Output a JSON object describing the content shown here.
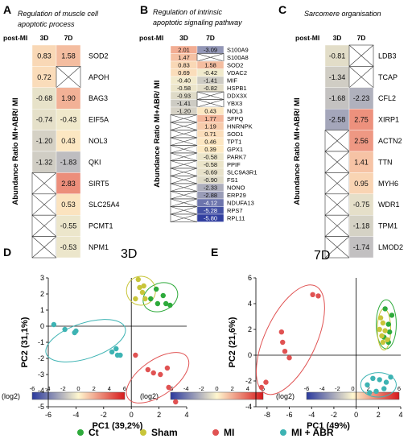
{
  "panels_top": [
    {
      "letter": "A",
      "title": "Regulation of muscle cell apoptotic process",
      "title_lines": [
        "Regulation of  muscle cell",
        "apoptotic process"
      ],
      "post_mi": "post-MI",
      "col_headers": [
        "3D",
        "7D"
      ],
      "ylabel": "Abundance Ratio MI+ABR/ MI",
      "genes": [
        "SOD2",
        "APOH",
        "BAG3",
        "EIF5A",
        "NOL3",
        "QKI",
        "SIRT5",
        "SLC25A4",
        "PCMT1",
        "NPM1"
      ],
      "values_3d": [
        0.83,
        0.72,
        -0.68,
        -0.74,
        -1.2,
        -1.32,
        null,
        null,
        null,
        null
      ],
      "values_7d": [
        1.58,
        null,
        1.9,
        -0.43,
        0.43,
        -1.83,
        2.83,
        0.53,
        -0.55,
        -0.53
      ],
      "values_3d_text": [
        "0.83",
        "0.72",
        "-0.68",
        "-0.74",
        "-1.20",
        "-1.32",
        "",
        "",
        "",
        ""
      ],
      "values_7d_text": [
        "1.58",
        "",
        "1.90",
        "-0.43",
        "0.43",
        "-1.83",
        "2.83",
        "0.53",
        "-0.55",
        "-0.53"
      ]
    },
    {
      "letter": "B",
      "title": "Regulation of intrinsic apoptotic signaling pathway",
      "title_lines": [
        "Regulation of intrinsic",
        "apoptotic signaling pathway"
      ],
      "post_mi": "post-MI",
      "col_headers": [
        "3D",
        "7D"
      ],
      "ylabel": "Abundance Ratio MI+ABR/ MI",
      "genes": [
        "S100A9",
        "S100A8",
        "SOD2",
        "VDAC2",
        "MIF",
        "HSPB1",
        "DDX3X",
        "YBX3",
        "NOL3",
        "SFPQ",
        "HNRNPK",
        "SOD1",
        "TPT1",
        "GPX1",
        "PARK7",
        "PPIF",
        "SLC9A3R1",
        "FS1",
        "NONO",
        "ERP29",
        "NDUFA13",
        "RPS7",
        "RPL11"
      ],
      "values_3d": [
        2.01,
        1.47,
        0.83,
        0.69,
        -0.4,
        -0.58,
        -0.93,
        -1.41,
        -1.2,
        null,
        null,
        null,
        null,
        null,
        null,
        null,
        null,
        null,
        null,
        null,
        null,
        null,
        null
      ],
      "values_7d": [
        -3.09,
        null,
        1.58,
        -0.42,
        -1.41,
        -0.82,
        null,
        null,
        0.43,
        1.77,
        1.19,
        0.71,
        0.46,
        0.39,
        -0.58,
        -0.58,
        -0.69,
        -0.9,
        -2.33,
        -2.88,
        -4.12,
        -5.28,
        -5.8
      ],
      "values_3d_text": [
        "2.01",
        "1.47",
        "0.83",
        "0.69",
        "-0.40",
        "-0.58",
        "-0.93",
        "-1.41",
        "-1.20",
        "",
        "",
        "",
        "",
        "",
        "",
        "",
        "",
        "",
        "",
        "",
        "",
        "",
        ""
      ],
      "values_7d_text": [
        "-3.09",
        "",
        "1.58",
        "-0.42",
        "-1.41",
        "-0.82",
        "",
        "",
        "0.43",
        "1.77",
        "1.19",
        "0.71",
        "0.46",
        "0.39",
        "-0.58",
        "-0.58",
        "-0.69",
        "-0.90",
        "-2.33",
        "-2.88",
        "-4.12",
        "-5.28",
        "-5.80"
      ]
    },
    {
      "letter": "C",
      "title": "Sarcomere organisation",
      "title_lines": [
        "Sarcomere organisation"
      ],
      "post_mi": "post-MI",
      "col_headers": [
        "3D",
        "7D"
      ],
      "ylabel": "Abundance Ratio MI+ABR/ MI",
      "genes": [
        "LDB3",
        "TCAP",
        "CFL2",
        "XIRP1",
        "ACTN2",
        "TTN",
        "MYH6",
        "WDR1",
        "TPM1",
        "LMOD2"
      ],
      "values_3d": [
        -0.81,
        -1.34,
        -1.68,
        -2.58,
        null,
        null,
        null,
        null,
        null,
        null
      ],
      "values_7d": [
        null,
        null,
        -2.23,
        2.75,
        2.56,
        1.41,
        0.95,
        -0.75,
        -1.18,
        -1.74
      ],
      "values_3d_text": [
        "-0.81",
        "-1.34",
        "-1.68",
        "-2.58",
        "",
        "",
        "",
        "",
        "",
        ""
      ],
      "values_7d_text": [
        "",
        "",
        "-2.23",
        "2.75",
        "2.56",
        "1.41",
        "0.95",
        "-0.75",
        "-1.18",
        "-1.74"
      ]
    }
  ],
  "colorbar": {
    "label": "(log2)",
    "ticks": [
      -6,
      -4,
      -2,
      0,
      2,
      4,
      6
    ],
    "tick_labels": [
      "-6",
      "-4",
      "-2",
      "0",
      "2",
      "4",
      "6"
    ],
    "range": [
      -6,
      6
    ],
    "color_low": "#2b3a9e",
    "color_mid": "#fff7cf",
    "color_high": "#d7191c"
  },
  "chart_data": [
    {
      "type": "scatter",
      "letter": "D",
      "title": "3D",
      "xlabel": "PC1 (39,2%)",
      "ylabel": "PC2 (31,1%)",
      "xlim": [
        -6,
        4
      ],
      "ylim": [
        -5,
        3
      ],
      "xticks": [
        -6,
        -4,
        -2,
        0,
        2,
        4
      ],
      "yticks": [
        -5,
        -4,
        -3,
        -2,
        -1,
        0,
        1,
        2,
        3
      ],
      "xtick_labels": [
        "-6",
        "-4",
        "-2",
        "0",
        "2",
        "4"
      ],
      "ytick_labels": [
        "-5",
        "-4",
        "-3",
        "-2",
        "-1",
        "0",
        "1",
        "2",
        "3"
      ],
      "series": [
        {
          "name": "Ct",
          "color": "#2eaa3b",
          "points": [
            [
              1.8,
              2.3
            ],
            [
              2.3,
              1.9
            ],
            [
              1.4,
              1.7
            ],
            [
              1.9,
              1.4
            ],
            [
              2.5,
              1.4
            ],
            [
              2.8,
              1.3
            ]
          ]
        },
        {
          "name": "Sham",
          "color": "#c8c53a",
          "points": [
            [
              0.5,
              2.9
            ],
            [
              0.9,
              2.5
            ],
            [
              0.8,
              2.1
            ],
            [
              1.0,
              1.7
            ],
            [
              0.3,
              1.7
            ],
            [
              0.6,
              2.4
            ]
          ]
        },
        {
          "name": "MI",
          "color": "#e05252",
          "points": [
            [
              0.3,
              -1.8
            ],
            [
              1.2,
              -2.7
            ],
            [
              2.1,
              -3.0
            ],
            [
              2.6,
              -2.6
            ],
            [
              2.7,
              -3.8
            ],
            [
              3.2,
              -4.7
            ],
            [
              1.6,
              -2.9
            ]
          ]
        },
        {
          "name": "MI + ABR",
          "color": "#3db3b3",
          "points": [
            [
              -5.6,
              0.1
            ],
            [
              -4.8,
              -0.2
            ],
            [
              -4.1,
              -0.4
            ],
            [
              -4.0,
              -0.3
            ],
            [
              -1.4,
              -1.6
            ],
            [
              -1.1,
              -1.4
            ],
            [
              -1.0,
              -1.8
            ],
            [
              -0.8,
              -1.8
            ]
          ]
        }
      ],
      "ellipses": [
        {
          "color": "#2eaa3b",
          "cx": 2.1,
          "cy": 1.8,
          "rx": 1.3,
          "ry": 0.85,
          "rot": -25
        },
        {
          "color": "#c8c53a",
          "cx": 0.7,
          "cy": 2.2,
          "rx": 1.05,
          "ry": 0.9,
          "rot": 0
        },
        {
          "color": "#e05252",
          "cx": 1.9,
          "cy": -3.2,
          "rx": 2.6,
          "ry": 1.1,
          "rot": -35
        },
        {
          "color": "#3db3b3",
          "cx": -3.3,
          "cy": -0.9,
          "rx": 3.0,
          "ry": 1.1,
          "rot": -18
        }
      ]
    },
    {
      "type": "scatter",
      "letter": "E",
      "title": "7D",
      "xlabel": "PC1 (49%)",
      "ylabel": "PC2 (21,6%)",
      "xlim": [
        -9,
        4
      ],
      "ylim": [
        -4,
        6
      ],
      "xticks": [
        -8,
        -6,
        -4,
        -2,
        0,
        2,
        4
      ],
      "yticks": [
        -4,
        -2,
        0,
        2,
        4,
        6
      ],
      "xtick_labels": [
        "-8",
        "-6",
        "-4",
        "-2",
        "0",
        "2",
        "4"
      ],
      "ytick_labels": [
        "-4",
        "-2",
        "0",
        "2",
        "4",
        "6"
      ],
      "series": [
        {
          "name": "Ct",
          "color": "#2eaa3b",
          "points": [
            [
              2.6,
              3.6
            ],
            [
              3.2,
              3.1
            ],
            [
              2.9,
              2.4
            ],
            [
              3.0,
              1.8
            ],
            [
              2.5,
              1.4
            ],
            [
              2.9,
              1.0
            ]
          ]
        },
        {
          "name": "Sham",
          "color": "#c8c53a",
          "points": [
            [
              2.2,
              2.9
            ],
            [
              2.4,
              2.5
            ],
            [
              2.1,
              2.0
            ],
            [
              2.6,
              1.9
            ],
            [
              2.3,
              1.5
            ],
            [
              2.8,
              1.2
            ],
            [
              2.4,
              1.0
            ]
          ]
        },
        {
          "name": "MI",
          "color": "#e05252",
          "points": [
            [
              -3.9,
              4.7
            ],
            [
              -3.4,
              4.6
            ],
            [
              -6.7,
              1.8
            ],
            [
              -6.6,
              1.0
            ],
            [
              -6.4,
              0.3
            ],
            [
              -6.0,
              -0.2
            ],
            [
              -8.1,
              -2.1
            ],
            [
              -8.5,
              -2.5
            ]
          ]
        },
        {
          "name": "MI + ABR",
          "color": "#3db3b3",
          "points": [
            [
              1.0,
              -2.3
            ],
            [
              1.5,
              -1.8
            ],
            [
              2.1,
              -1.9
            ],
            [
              2.7,
              -2.1
            ],
            [
              3.1,
              -1.7
            ],
            [
              1.8,
              -2.8
            ],
            [
              2.5,
              -2.6
            ],
            [
              1.2,
              -2.9
            ]
          ]
        }
      ],
      "ellipses": [
        {
          "color": "#2eaa3b",
          "cx": 2.7,
          "cy": 2.4,
          "rx": 0.9,
          "ry": 1.9,
          "rot": 0
        },
        {
          "color": "#c8c53a",
          "cx": 2.5,
          "cy": 2.0,
          "rx": 0.6,
          "ry": 1.6,
          "rot": 0
        },
        {
          "color": "#e05252",
          "cx": -5.9,
          "cy": 1.2,
          "rx": 2.3,
          "ry": 4.6,
          "rot": 25
        },
        {
          "color": "#3db3b3",
          "cx": 2.0,
          "cy": -2.3,
          "rx": 1.6,
          "ry": 0.95,
          "rot": 0
        }
      ]
    }
  ],
  "legend": {
    "items": [
      {
        "label": "Ct",
        "color": "#2eaa3b"
      },
      {
        "label": "Sham",
        "color": "#c8c53a"
      },
      {
        "label": "MI",
        "color": "#e05252"
      },
      {
        "label": "MI + ABR",
        "color": "#3db3b3"
      }
    ]
  }
}
